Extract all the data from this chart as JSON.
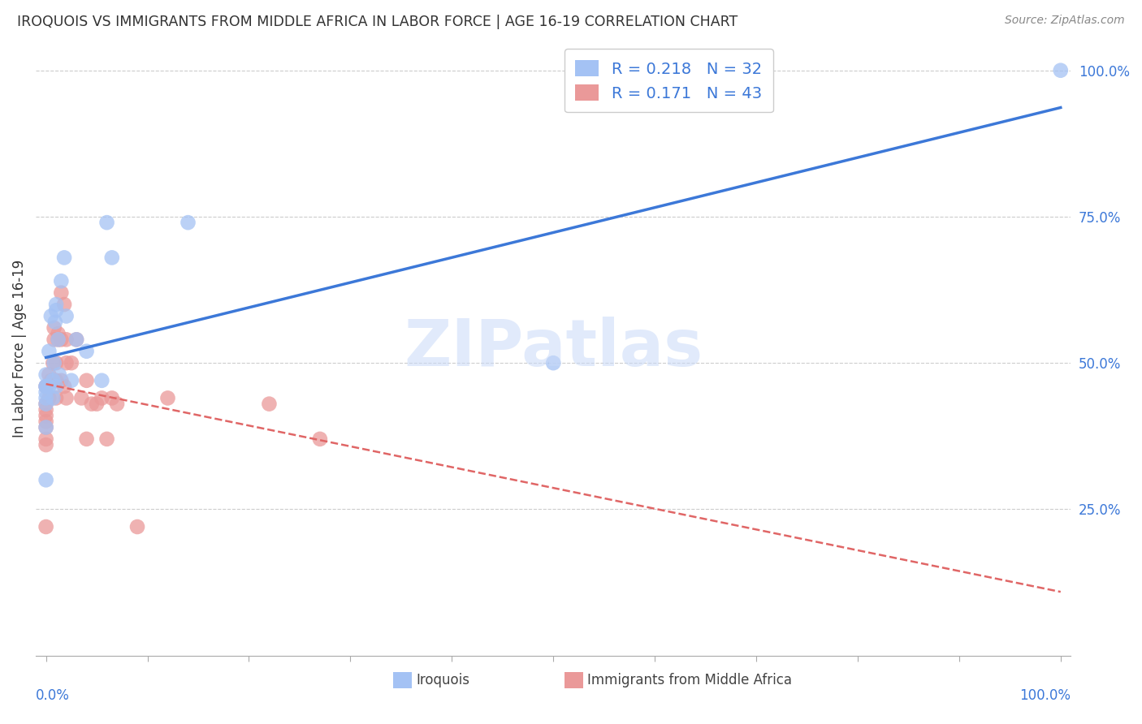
{
  "title": "IROQUOIS VS IMMIGRANTS FROM MIDDLE AFRICA IN LABOR FORCE | AGE 16-19 CORRELATION CHART",
  "source": "Source: ZipAtlas.com",
  "ylabel": "In Labor Force | Age 16-19",
  "legend1_r": "0.218",
  "legend1_n": "32",
  "legend2_r": "0.171",
  "legend2_n": "43",
  "blue_color": "#a4c2f4",
  "pink_color": "#ea9999",
  "line_blue": "#3c78d8",
  "line_dashed_color": "#e06666",
  "watermark_color": "#c9daf8",
  "right_tick_color": "#3c78d8",
  "xlabel_color": "#3c78d8",
  "iroquois_x": [
    0.0,
    0.0,
    0.0,
    0.0,
    0.0,
    0.0,
    0.0,
    0.0,
    0.003,
    0.003,
    0.005,
    0.007,
    0.007,
    0.008,
    0.009,
    0.01,
    0.01,
    0.01,
    0.012,
    0.013,
    0.015,
    0.018,
    0.02,
    0.025,
    0.03,
    0.04,
    0.055,
    0.06,
    0.065,
    0.14,
    0.5,
    1.0
  ],
  "iroquois_y": [
    0.3,
    0.39,
    0.43,
    0.44,
    0.45,
    0.46,
    0.46,
    0.48,
    0.46,
    0.52,
    0.58,
    0.44,
    0.47,
    0.5,
    0.57,
    0.46,
    0.59,
    0.6,
    0.54,
    0.48,
    0.64,
    0.68,
    0.58,
    0.47,
    0.54,
    0.52,
    0.47,
    0.74,
    0.68,
    0.74,
    0.5,
    1.0
  ],
  "immigrants_x": [
    0.0,
    0.0,
    0.0,
    0.0,
    0.0,
    0.0,
    0.0,
    0.0,
    0.0,
    0.003,
    0.003,
    0.005,
    0.007,
    0.008,
    0.008,
    0.01,
    0.01,
    0.01,
    0.012,
    0.012,
    0.015,
    0.015,
    0.015,
    0.018,
    0.018,
    0.02,
    0.02,
    0.02,
    0.025,
    0.03,
    0.035,
    0.04,
    0.04,
    0.045,
    0.05,
    0.055,
    0.06,
    0.065,
    0.07,
    0.09,
    0.12,
    0.22,
    0.27
  ],
  "immigrants_y": [
    0.22,
    0.36,
    0.37,
    0.39,
    0.4,
    0.41,
    0.42,
    0.43,
    0.46,
    0.44,
    0.48,
    0.47,
    0.5,
    0.54,
    0.56,
    0.44,
    0.47,
    0.5,
    0.54,
    0.55,
    0.47,
    0.54,
    0.62,
    0.46,
    0.6,
    0.44,
    0.5,
    0.54,
    0.5,
    0.54,
    0.44,
    0.37,
    0.47,
    0.43,
    0.43,
    0.44,
    0.37,
    0.44,
    0.43,
    0.22,
    0.44,
    0.43,
    0.37
  ],
  "xmin": 0.0,
  "xmax": 1.0,
  "ymin": 0.0,
  "ymax": 1.05
}
